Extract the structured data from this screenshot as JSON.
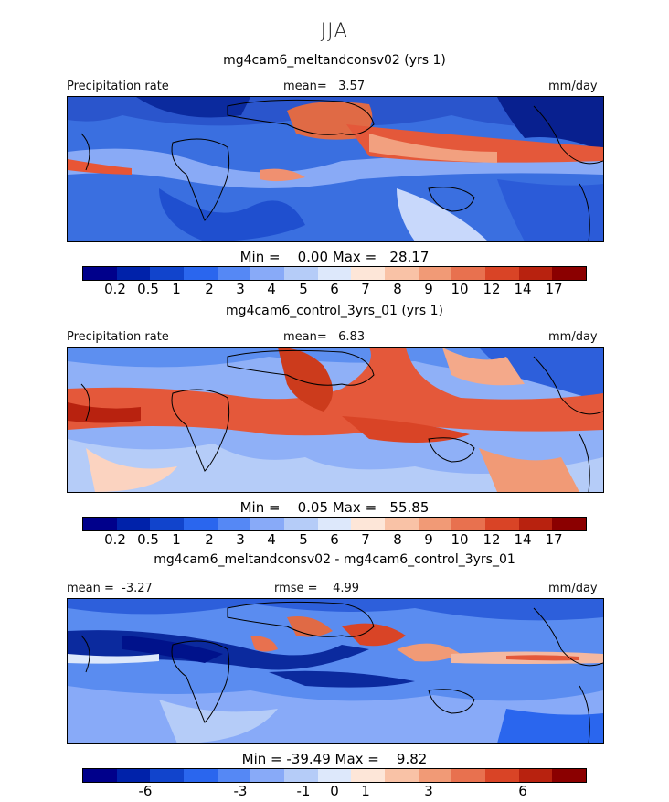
{
  "season": "JJA",
  "units": "mm/day",
  "panels": [
    {
      "title": "mg4cam6_meltandconsv02 (yrs 1)",
      "left_label": "Precipitation rate",
      "center_label": "mean=   3.57",
      "right_label": "mm/day",
      "stats": "Min =    0.00 Max =   28.17",
      "colorbar_ticks": [
        "0.2",
        "0.5",
        "1",
        "2",
        "3",
        "4",
        "5",
        "6",
        "7",
        "8",
        "9",
        "10",
        "12",
        "14",
        "17"
      ],
      "map_summary": {
        "mean": 3.57,
        "min": 0.0,
        "max": 28.17
      }
    },
    {
      "title": "mg4cam6_control_3yrs_01 (yrs 1)",
      "left_label": "Precipitation rate",
      "center_label": "mean=   6.83",
      "right_label": "mm/day",
      "stats": "Min =    0.05 Max =   55.85",
      "colorbar_ticks": [
        "0.2",
        "0.5",
        "1",
        "2",
        "3",
        "4",
        "5",
        "6",
        "7",
        "8",
        "9",
        "10",
        "12",
        "14",
        "17"
      ],
      "map_summary": {
        "mean": 6.83,
        "min": 0.05,
        "max": 55.85
      }
    },
    {
      "title": "mg4cam6_meltandconsv02 - mg4cam6_control_3yrs_01",
      "left_label": "mean =  -3.27",
      "center_label": "rmse =    4.99",
      "right_label": "mm/day",
      "stats": "Min = -39.49 Max =    9.82",
      "colorbar_ticks": [
        "-6",
        "-3",
        "-1",
        "0",
        "1",
        "3",
        "6"
      ],
      "map_summary": {
        "mean": -3.27,
        "rmse": 4.99,
        "min": -39.49,
        "max": 9.82
      }
    }
  ],
  "colorbar_colors": [
    "#00008b",
    "#0022aa",
    "#1144cc",
    "#2a66ee",
    "#5588f5",
    "#88aaf8",
    "#b5ccf8",
    "#dde8fb",
    "#fde6d8",
    "#f9c2a6",
    "#f19a76",
    "#e8714f",
    "#d94426",
    "#b8220f",
    "#8b0000"
  ]
}
